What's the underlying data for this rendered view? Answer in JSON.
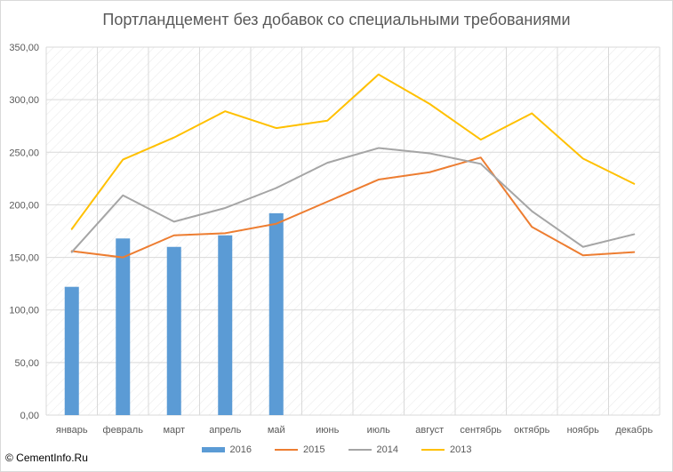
{
  "title": "Портландцемент без добавок со специальными требованиями",
  "copyright": "© CementInfo.Ru",
  "colors": {
    "s2016": "#5b9bd5",
    "s2015": "#ed7d31",
    "s2014": "#a5a5a5",
    "s2013": "#ffc000",
    "grid": "#d9d9d9",
    "hatch": "#e8e8e8"
  },
  "chart_data": {
    "type": "bar",
    "title": "Портландцемент без добавок со специальными требованиями",
    "xlabel": "",
    "ylabel": "",
    "ylim": [
      0,
      350
    ],
    "yticks": [
      "0,00",
      "50,00",
      "100,00",
      "150,00",
      "200,00",
      "250,00",
      "300,00",
      "350,00"
    ],
    "grid": true,
    "legend_position": "bottom",
    "categories": [
      "январь",
      "февраль",
      "март",
      "апрель",
      "май",
      "июнь",
      "июль",
      "август",
      "сентябрь",
      "октябрь",
      "ноябрь",
      "декабрь"
    ],
    "series": [
      {
        "name": "2016",
        "kind": "bar",
        "values": [
          122,
          168,
          160,
          171,
          192,
          null,
          null,
          null,
          null,
          null,
          null,
          null
        ]
      },
      {
        "name": "2015",
        "kind": "line",
        "values": [
          156,
          150,
          171,
          173,
          182,
          203,
          224,
          231,
          245,
          179,
          152,
          155
        ]
      },
      {
        "name": "2014",
        "kind": "line",
        "values": [
          155,
          209,
          184,
          197,
          216,
          240,
          254,
          249,
          239,
          194,
          160,
          172
        ]
      },
      {
        "name": "2013",
        "kind": "line",
        "values": [
          177,
          243,
          264,
          289,
          273,
          280,
          324,
          296,
          262,
          287,
          244,
          220
        ]
      }
    ]
  }
}
